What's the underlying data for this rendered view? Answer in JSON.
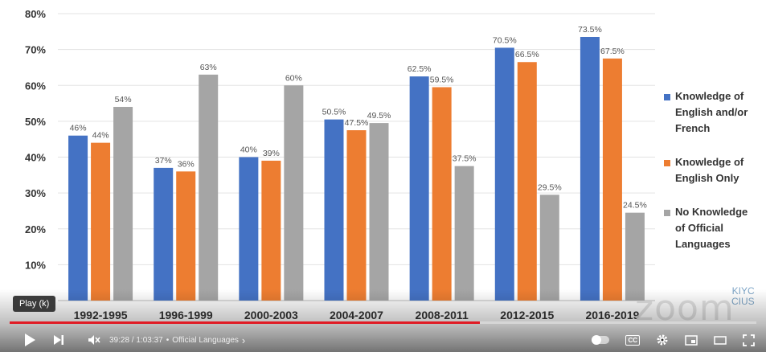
{
  "chart_data": {
    "type": "bar",
    "title": "",
    "categories": [
      "1992-1995",
      "1996-1999",
      "2000-2003",
      "2004-2007",
      "2008-2011",
      "2012-2015",
      "2016-2019"
    ],
    "series": [
      {
        "name": "Knowledge of English and/or French",
        "color": "#4472c4",
        "values": [
          46,
          37,
          40,
          50.5,
          62.5,
          70.5,
          73.5
        ],
        "labels": [
          "46%",
          "37%",
          "40%",
          "50.5%",
          "62.5%",
          "70.5%",
          "73.5%"
        ]
      },
      {
        "name": "Knowledge of English Only",
        "color": "#ed7d31",
        "values": [
          44,
          36,
          39,
          47.5,
          59.5,
          66.5,
          67.5
        ],
        "labels": [
          "44%",
          "36%",
          "39%",
          "47.5%",
          "59.5%",
          "66.5%",
          "67.5%"
        ]
      },
      {
        "name": "No Knowledge of Official Languages",
        "color": "#a5a5a5",
        "values": [
          54,
          63,
          60,
          49.5,
          37.5,
          29.5,
          24.5
        ],
        "labels": [
          "54%",
          "63%",
          "60%",
          "49.5%",
          "37.5%",
          "29.5%",
          "24.5%"
        ]
      }
    ],
    "ylim": [
      0,
      80
    ],
    "yticks": [
      "80%",
      "70%",
      "60%",
      "50%",
      "40%",
      "30%",
      "20%",
      "10%"
    ],
    "ytick_values": [
      80,
      70,
      60,
      50,
      40,
      30,
      20,
      10
    ],
    "grid": true,
    "legend_placement": "right"
  },
  "legend": {
    "items": [
      {
        "lines": [
          "Knowledge of",
          "English and/or",
          "French"
        ],
        "color": "#4472c4"
      },
      {
        "lines": [
          "Knowledge of",
          "English Only"
        ],
        "color": "#ed7d31"
      },
      {
        "lines": [
          "No Knowledge",
          "of Official",
          "Languages"
        ],
        "color": "#a5a5a5"
      }
    ]
  },
  "watermark": {
    "zoom": "zoom",
    "logo_line1": "KIYC",
    "logo_line2": "CIUS"
  },
  "player": {
    "tooltip": "Play (k)",
    "progress_fraction": 0.63,
    "time": "39:28 / 1:03:37",
    "separator": "•",
    "chapter": "Official Languages",
    "chapter_arrow": "›",
    "icons": {
      "play": "play-icon",
      "next": "next-icon",
      "mute": "mute-icon",
      "autoplay": "autoplay-toggle",
      "captions": "cc-icon",
      "settings": "gear-icon",
      "miniplayer": "miniplayer-icon",
      "theater": "theater-icon",
      "fullscreen": "fullscreen-icon"
    },
    "cc_label": "CC",
    "accent_color": "#e01b24"
  }
}
